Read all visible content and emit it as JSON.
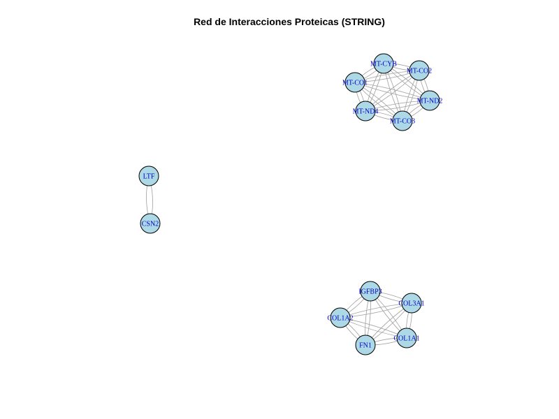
{
  "title": "Red de Interacciones Proteicas (STRING)",
  "colors": {
    "node_fill": "#add8e6",
    "node_stroke": "#000000",
    "label": "#0000cc",
    "edge": "#a0a0a0"
  },
  "clusters": [
    {
      "nodes": [
        "MT-CYB",
        "MT-CO2",
        "MT-CO1",
        "MT-ND2",
        "MT-ND4",
        "MT-CO3"
      ],
      "edges": [
        [
          "MT-CYB",
          "MT-CO2"
        ],
        [
          "MT-CYB",
          "MT-CO1"
        ],
        [
          "MT-CYB",
          "MT-ND2"
        ],
        [
          "MT-CYB",
          "MT-ND4"
        ],
        [
          "MT-CYB",
          "MT-CO3"
        ],
        [
          "MT-CO2",
          "MT-CO1"
        ],
        [
          "MT-CO2",
          "MT-ND2"
        ],
        [
          "MT-CO2",
          "MT-ND4"
        ],
        [
          "MT-CO2",
          "MT-CO3"
        ],
        [
          "MT-CO1",
          "MT-ND2"
        ],
        [
          "MT-CO1",
          "MT-ND4"
        ],
        [
          "MT-CO1",
          "MT-CO3"
        ],
        [
          "MT-ND2",
          "MT-ND4"
        ],
        [
          "MT-ND2",
          "MT-CO3"
        ],
        [
          "MT-ND4",
          "MT-CO3"
        ]
      ]
    },
    {
      "nodes": [
        "LTF",
        "CSN2"
      ],
      "edges": [
        [
          "LTF",
          "CSN2"
        ]
      ]
    },
    {
      "nodes": [
        "IGFBP3",
        "COL3A1",
        "COL1A2",
        "FN1",
        "COL1A1"
      ],
      "edges": [
        [
          "IGFBP3",
          "COL3A1"
        ],
        [
          "IGFBP3",
          "COL1A2"
        ],
        [
          "IGFBP3",
          "FN1"
        ],
        [
          "IGFBP3",
          "COL1A1"
        ],
        [
          "COL3A1",
          "COL1A2"
        ],
        [
          "COL3A1",
          "FN1"
        ],
        [
          "COL3A1",
          "COL1A1"
        ],
        [
          "COL1A2",
          "FN1"
        ],
        [
          "COL1A2",
          "COL1A1"
        ],
        [
          "FN1",
          "COL1A1"
        ]
      ]
    }
  ]
}
